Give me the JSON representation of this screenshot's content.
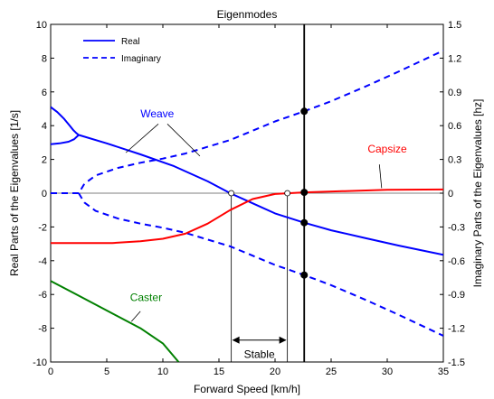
{
  "chart_data": {
    "type": "line",
    "title": "Eigenmodes",
    "xlabel": "Forward Speed [km/h]",
    "ylabel": "Real Parts of the Eigenvalues [1/s]",
    "y2label": "Imaginary Parts of the Eigenvalues [hz]",
    "xlim": [
      0,
      35
    ],
    "ylim": [
      -10,
      10
    ],
    "y2lim": [
      -1.5,
      1.5
    ],
    "xticks": [
      "0",
      "5",
      "10",
      "15",
      "20",
      "25",
      "30",
      "35"
    ],
    "yticks": [
      "10",
      "8",
      "6",
      "4",
      "2",
      "0",
      "-2",
      "-4",
      "-6",
      "-8",
      "-10"
    ],
    "y2ticks": [
      "1.5",
      "1.2",
      "0.9",
      "0.6",
      "0.3",
      "0",
      "-0.3",
      "-0.6",
      "-0.9",
      "-1.2",
      "-1.5"
    ],
    "legend": {
      "position": "top-left",
      "entries": [
        {
          "label": "Real",
          "style": "solid"
        },
        {
          "label": "Imaginary",
          "style": "dashed"
        }
      ]
    },
    "colors": {
      "weave": "#0000ff",
      "capsize": "#ff0000",
      "caster": "#008000",
      "axis": "#000000"
    },
    "series": [
      {
        "label": "Weave",
        "kind": "real",
        "color": "#0000ff",
        "style": "solid",
        "segments": [
          [
            [
              0,
              5.1
            ],
            [
              0.6,
              4.8
            ],
            [
              1.2,
              4.4
            ],
            [
              1.7,
              4.0
            ],
            [
              2.0,
              3.75
            ],
            [
              2.3,
              3.55
            ],
            [
              2.5,
              3.45
            ]
          ],
          [
            [
              0,
              2.9
            ],
            [
              0.8,
              2.95
            ],
            [
              1.6,
              3.05
            ],
            [
              2.1,
              3.2
            ],
            [
              2.5,
              3.45
            ]
          ],
          [
            [
              2.5,
              3.45
            ],
            [
              5,
              2.95
            ],
            [
              8,
              2.3
            ],
            [
              11,
              1.6
            ],
            [
              14,
              0.7
            ],
            [
              16,
              0
            ],
            [
              18,
              -0.6
            ],
            [
              20,
              -1.2
            ],
            [
              22.6,
              -1.75
            ],
            [
              25,
              -2.2
            ],
            [
              28,
              -2.65
            ],
            [
              31,
              -3.1
            ],
            [
              35,
              -3.65
            ]
          ]
        ]
      },
      {
        "label": "Weave",
        "kind": "imaginary",
        "color": "#0000ff",
        "style": "dashed",
        "segments": [
          [
            [
              0,
              0
            ],
            [
              2.5,
              0
            ],
            [
              3,
              0.55
            ],
            [
              4,
              1.05
            ],
            [
              6,
              1.5
            ],
            [
              8,
              1.8
            ],
            [
              10,
              2.05
            ],
            [
              12,
              2.35
            ],
            [
              14,
              2.75
            ],
            [
              16,
              3.15
            ],
            [
              18,
              3.7
            ],
            [
              20,
              4.25
            ],
            [
              22.6,
              4.85
            ],
            [
              25,
              5.45
            ],
            [
              28,
              6.3
            ],
            [
              31,
              7.2
            ],
            [
              35,
              8.45
            ]
          ],
          [
            [
              2.5,
              0
            ],
            [
              3,
              -0.55
            ],
            [
              4,
              -1.05
            ],
            [
              6,
              -1.5
            ],
            [
              8,
              -1.8
            ],
            [
              10,
              -2.05
            ],
            [
              12,
              -2.35
            ],
            [
              14,
              -2.75
            ],
            [
              16,
              -3.15
            ],
            [
              18,
              -3.7
            ],
            [
              20,
              -4.25
            ],
            [
              22.6,
              -4.85
            ],
            [
              25,
              -5.45
            ],
            [
              28,
              -6.3
            ],
            [
              31,
              -7.2
            ],
            [
              35,
              -8.45
            ]
          ]
        ]
      },
      {
        "label": "Capsize",
        "kind": "real",
        "color": "#ff0000",
        "style": "solid",
        "segments": [
          [
            [
              0,
              -2.95
            ],
            [
              3,
              -2.95
            ],
            [
              5.5,
              -2.95
            ],
            [
              8,
              -2.85
            ],
            [
              10,
              -2.7
            ],
            [
              12,
              -2.4
            ],
            [
              14,
              -1.8
            ],
            [
              16,
              -1.0
            ],
            [
              18,
              -0.35
            ],
            [
              20,
              -0.05
            ],
            [
              22.6,
              0.05
            ],
            [
              26,
              0.12
            ],
            [
              30,
              0.2
            ],
            [
              35,
              0.22
            ]
          ]
        ]
      },
      {
        "label": "Caster",
        "kind": "real",
        "color": "#008000",
        "style": "solid",
        "segments": [
          [
            [
              0,
              -5.2
            ],
            [
              2,
              -5.9
            ],
            [
              4,
              -6.6
            ],
            [
              6,
              -7.3
            ],
            [
              8,
              -8.0
            ],
            [
              10,
              -8.9
            ],
            [
              11.4,
              -10
            ]
          ]
        ]
      }
    ],
    "annotations": {
      "mode_labels": [
        {
          "text": "Weave",
          "color": "#0000ff",
          "at": [
            9.5,
            4.5
          ],
          "pointers": [
            [
              [
                9.6,
                4.1
              ],
              [
                6.7,
                2.4
              ]
            ],
            [
              [
                10.4,
                4.1
              ],
              [
                13.3,
                2.2
              ]
            ]
          ]
        },
        {
          "text": "Capsize",
          "color": "#ff0000",
          "at": [
            30,
            2.4
          ],
          "pointers": [
            [
              [
                29.3,
                1.7
              ],
              [
                29.5,
                0.3
              ]
            ]
          ]
        },
        {
          "text": "Caster",
          "color": "#008000",
          "at": [
            8.5,
            -6.4
          ],
          "pointers": [
            [
              [
                8.0,
                -7.0
              ],
              [
                7.2,
                -7.6
              ]
            ]
          ]
        }
      ],
      "stable_region": {
        "text": "Stable",
        "from": 16.1,
        "to": 21.1
      },
      "speed_marker": {
        "x": 22.6
      },
      "markers": [
        [
          22.6,
          4.85
        ],
        [
          22.6,
          0.05
        ],
        [
          22.6,
          -1.75
        ],
        [
          22.6,
          -4.85
        ]
      ],
      "open_markers": [
        [
          16.1,
          0
        ],
        [
          21.1,
          0
        ]
      ]
    },
    "grid": false
  }
}
